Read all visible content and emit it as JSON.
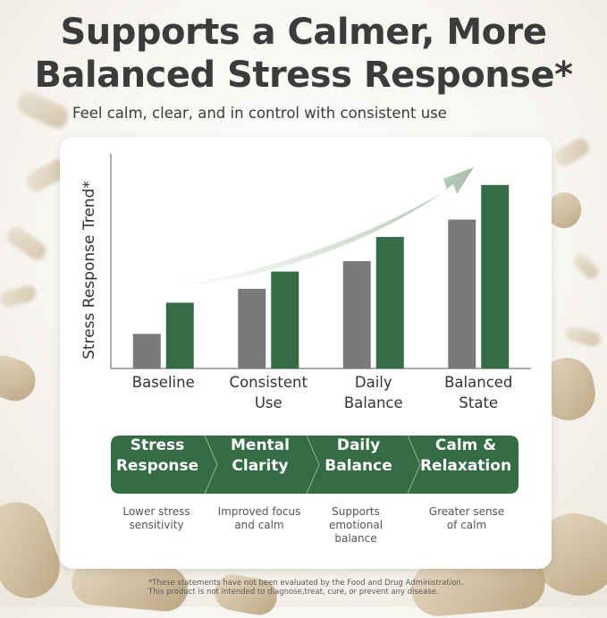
{
  "header": {
    "title_line1": "Supports a Calmer, More",
    "title_line2": "Balanced Stress Response*",
    "subtitle": "Feel calm, clear, and in control with consistent use"
  },
  "chart_data": {
    "type": "bar",
    "ylabel": "Stress Response Trend*",
    "xlabel": "",
    "categories": [
      "Baseline",
      "Consistent Use",
      "Daily Balance",
      "Balanced State"
    ],
    "category_lines": [
      [
        "Baseline"
      ],
      [
        "Consistent",
        "Use"
      ],
      [
        "Daily",
        "Balance"
      ],
      [
        "Balanced",
        "State"
      ]
    ],
    "series": [
      {
        "values": [
          1.0,
          2.3,
          3.1,
          4.3
        ]
      },
      {
        "values": [
          1.9,
          2.8,
          3.8,
          5.3
        ]
      }
    ],
    "ylim": [
      0,
      6.2
    ],
    "y_ticks_shown": false,
    "grid": false,
    "legend": "none",
    "trend_arrow": true,
    "colors": {
      "series0": "#7a7a7a",
      "series1": "#356b45",
      "arrow": "#cfdccf",
      "axis": "#555555"
    }
  },
  "process": {
    "steps": [
      {
        "label": "Stress Response",
        "lines": [
          "Stress",
          "Response"
        ],
        "desc_lines": [
          "Lower stress",
          "sensitivity"
        ]
      },
      {
        "label": "Mental Clarity",
        "lines": [
          "Mental",
          "Clarity"
        ],
        "desc_lines": [
          "Improved focus",
          "and calm"
        ]
      },
      {
        "label": "Daily Balance",
        "lines": [
          "Daily",
          "Balance"
        ],
        "desc_lines": [
          "Supports",
          "emotional",
          "balance"
        ]
      },
      {
        "label": "Calm & Relaxation",
        "lines": [
          "Calm &",
          "Relaxation"
        ],
        "desc_lines": [
          "Greater sense",
          "of calm"
        ]
      }
    ],
    "color": "#356b45"
  },
  "footnote": {
    "line1": "*These statements have not been evaluated by the Food and Drug Administration.",
    "line2": "This product is not intended to diagnose,treat, cure, or prevent any disease."
  }
}
